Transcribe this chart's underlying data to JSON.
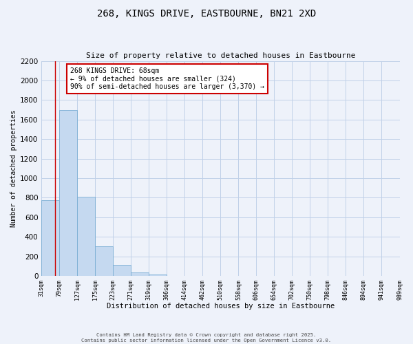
{
  "title": "268, KINGS DRIVE, EASTBOURNE, BN21 2XD",
  "subtitle": "Size of property relative to detached houses in Eastbourne",
  "xlabel": "Distribution of detached houses by size in Eastbourne",
  "ylabel": "Number of detached properties",
  "bar_values": [
    775,
    1695,
    810,
    300,
    110,
    35,
    12,
    0,
    0,
    0,
    0,
    0,
    0,
    0,
    0,
    0,
    0,
    0,
    0,
    0
  ],
  "bin_labels": [
    "31sqm",
    "79sqm",
    "127sqm",
    "175sqm",
    "223sqm",
    "271sqm",
    "319sqm",
    "366sqm",
    "414sqm",
    "462sqm",
    "510sqm",
    "558sqm",
    "606sqm",
    "654sqm",
    "702sqm",
    "750sqm",
    "798sqm",
    "846sqm",
    "894sqm",
    "941sqm",
    "989sqm"
  ],
  "bar_color": "#c5d9f0",
  "bar_edge_color": "#7aadd4",
  "property_size": "68sqm",
  "property_name": "268 KINGS DRIVE",
  "pct_smaller": 9,
  "n_smaller": 324,
  "pct_larger_semi": 90,
  "n_larger_semi": 3370,
  "annotation_box_color": "#ffffff",
  "annotation_box_edge": "#cc0000",
  "vline_color": "#cc0000",
  "ylim": [
    0,
    2200
  ],
  "yticks": [
    0,
    200,
    400,
    600,
    800,
    1000,
    1200,
    1400,
    1600,
    1800,
    2000,
    2200
  ],
  "grid_color": "#c0d0e8",
  "background_color": "#eef2fa",
  "footer_line1": "Contains HM Land Registry data © Crown copyright and database right 2025.",
  "footer_line2": "Contains public sector information licensed under the Open Government Licence v3.0."
}
